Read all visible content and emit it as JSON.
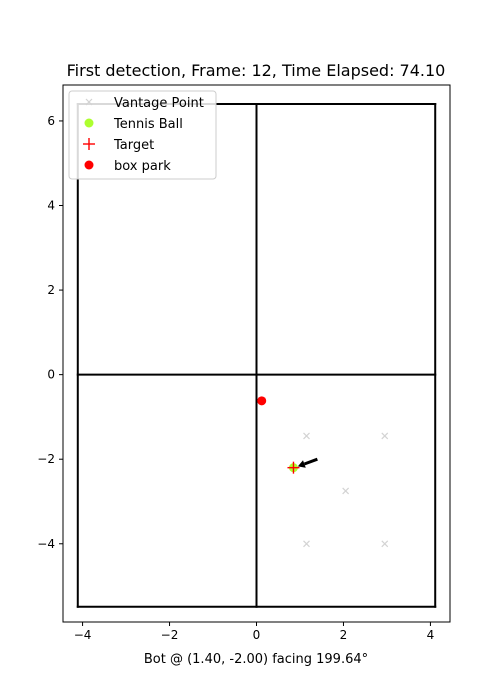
{
  "chart_data": {
    "type": "scatter",
    "title": "First detection, Frame: 12, Time Elapsed: 74.10",
    "xlabel": "Bot @ (1.40, -2.00) facing 199.64°",
    "ylabel": "",
    "xlim": [
      -4.45,
      4.45
    ],
    "ylim": [
      -5.85,
      6.85
    ],
    "x_ticks": [
      -4,
      -2,
      0,
      2,
      4
    ],
    "y_ticks": [
      -4,
      -2,
      0,
      2,
      4,
      6
    ],
    "grid": false,
    "legend_position": "upper-left",
    "court_lines": [
      {
        "from": [
          -4.11,
          -5.49
        ],
        "to": [
          4.11,
          -5.49
        ]
      },
      {
        "from": [
          4.11,
          -5.49
        ],
        "to": [
          4.11,
          6.4
        ]
      },
      {
        "from": [
          4.11,
          6.4
        ],
        "to": [
          -4.11,
          6.4
        ]
      },
      {
        "from": [
          -4.11,
          6.4
        ],
        "to": [
          -4.11,
          -5.49
        ]
      },
      {
        "from": [
          0,
          -5.49
        ],
        "to": [
          0,
          6.4
        ]
      },
      {
        "from": [
          -4.11,
          0
        ],
        "to": [
          4.11,
          0
        ]
      }
    ],
    "series": [
      {
        "name": "Vantage Point",
        "marker": "x",
        "color": "#d3d3d3",
        "points": [
          [
            1.15,
            -1.45
          ],
          [
            2.95,
            -1.45
          ],
          [
            2.05,
            -2.75
          ],
          [
            1.15,
            -4.0
          ],
          [
            2.95,
            -4.0
          ]
        ]
      },
      {
        "name": "Tennis Ball",
        "marker": "circle",
        "color": "#adff2f",
        "points": [
          [
            0.85,
            -2.2
          ]
        ]
      },
      {
        "name": "Target",
        "marker": "plus",
        "color": "#ff0000",
        "points": [
          [
            0.85,
            -2.2
          ]
        ]
      },
      {
        "name": "box park",
        "marker": "circle",
        "color": "#ff0000",
        "points": [
          [
            0.12,
            -0.62
          ]
        ]
      }
    ],
    "bot_arrow": {
      "from": [
        1.4,
        -2.0
      ],
      "to": [
        0.95,
        -2.17
      ],
      "color": "#000000"
    }
  }
}
